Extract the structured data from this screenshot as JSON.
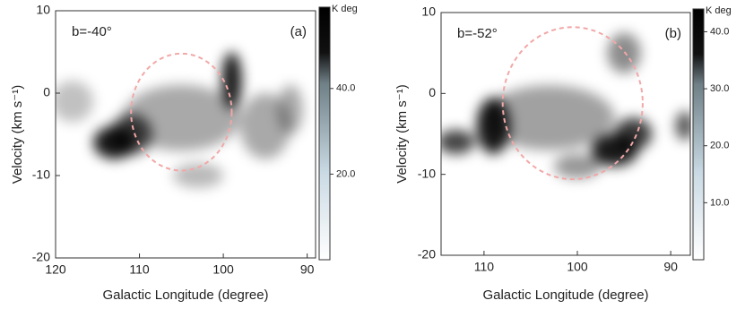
{
  "chart_data": [
    {
      "type": "heatmap",
      "annotation": "b=-40°",
      "label": "(a)",
      "xlabel": "Galactic Longitude (degree)",
      "ylabel": "Velocity (km s⁻¹)",
      "xlim": [
        120,
        89
      ],
      "ylim": [
        -20,
        10
      ],
      "xticks": [
        120,
        110,
        100,
        90
      ],
      "yticks": [
        10,
        0,
        -10,
        -20
      ],
      "blobs": [
        [
          105,
          -3,
          7,
          4,
          22
        ],
        [
          113,
          -6,
          2.5,
          2,
          59
        ],
        [
          111,
          -5,
          2.5,
          2.5,
          45
        ],
        [
          99,
          1.5,
          1.2,
          3.5,
          59
        ],
        [
          95,
          -4,
          3,
          4,
          22
        ],
        [
          118,
          -1,
          2.5,
          2.5,
          16
        ],
        [
          103,
          -10,
          3,
          1.5,
          18
        ],
        [
          92,
          -2,
          1.5,
          3,
          22
        ]
      ],
      "ellipse": [
        105,
        -2.3,
        6,
        7.1
      ],
      "ellipse_color": "#f2a7a7",
      "colorbar": {
        "label": "K deg",
        "lim": [
          0,
          59
        ],
        "ticks": [
          {
            "value": 40,
            "label": "40.0"
          },
          {
            "value": 20,
            "label": "20.0"
          }
        ]
      }
    },
    {
      "type": "heatmap",
      "annotation": "b=-52°",
      "label": "(b)",
      "xlabel": "Galactic Longitude (degree)",
      "ylabel": "Velocity (km s⁻¹)",
      "xlim": [
        114.6,
        87.9
      ],
      "ylim": [
        -20,
        10
      ],
      "xticks": [
        110,
        100,
        90
      ],
      "yticks": [
        10,
        0,
        -10,
        -20
      ],
      "blobs": [
        [
          103,
          -3,
          7,
          4,
          18
        ],
        [
          109,
          -4,
          1.8,
          3.5,
          44
        ],
        [
          113,
          -6,
          2,
          1.5,
          36
        ],
        [
          96,
          -7,
          2.5,
          2,
          44
        ],
        [
          94,
          -5,
          2,
          2,
          38
        ],
        [
          95,
          5,
          1.8,
          2.5,
          22
        ],
        [
          88.5,
          -4,
          1,
          1.8,
          32
        ],
        [
          100,
          -9,
          2.5,
          1.5,
          20
        ]
      ],
      "ellipse": [
        100.5,
        -1.2,
        7.5,
        9.4
      ],
      "ellipse_color": "#f2a7a7",
      "colorbar": {
        "label": "K deg",
        "lim": [
          0,
          44
        ],
        "ticks": [
          {
            "value": 40,
            "label": "40.0"
          },
          {
            "value": 30,
            "label": "30.0"
          },
          {
            "value": 20,
            "label": "20.0"
          },
          {
            "value": 10,
            "label": "10.0"
          }
        ]
      }
    }
  ]
}
